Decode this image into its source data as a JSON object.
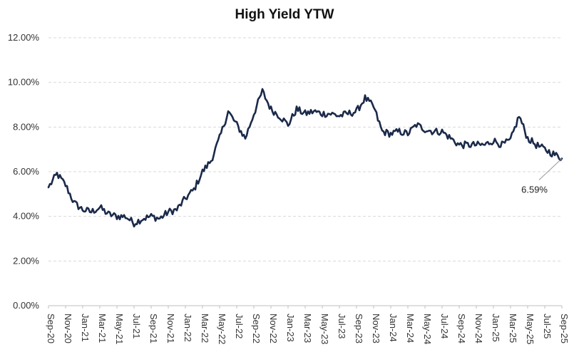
{
  "chart_data": {
    "type": "line",
    "title": "High Yield YTW",
    "xlabel": "",
    "ylabel": "",
    "ylim": [
      0,
      12
    ],
    "y_ticks": [
      "0.00%",
      "2.00%",
      "4.00%",
      "6.00%",
      "8.00%",
      "10.00%",
      "12.00%"
    ],
    "y_tick_values": [
      0,
      2,
      4,
      6,
      8,
      10,
      12
    ],
    "x_ticks": [
      "Sep-20",
      "Nov-20",
      "Jan-21",
      "Mar-21",
      "May-21",
      "Jul-21",
      "Sep-21",
      "Nov-21",
      "Jan-22",
      "Mar-22",
      "May-22",
      "Jul-22",
      "Sep-22",
      "Nov-22",
      "Jan-23",
      "Mar-23",
      "May-23",
      "Jul-23",
      "Sep-23",
      "Nov-23",
      "Jan-24",
      "Mar-24",
      "May-24",
      "Jul-24",
      "Sep-24",
      "Nov-24",
      "Jan-25",
      "Mar-25",
      "May-25",
      "Jul-25",
      "Sep-25"
    ],
    "grid": true,
    "line_color": "#1b2a4a",
    "grid_color": "#d9d9d9",
    "annotation": {
      "label": "6.59%",
      "value": 6.59,
      "x": "Sep-25"
    },
    "series": [
      {
        "x": [
          "Sep-20",
          "Oct-20",
          "Nov-20",
          "Dec-20",
          "Jan-21",
          "Feb-21",
          "Mar-21",
          "Apr-21",
          "May-21",
          "Jun-21",
          "Jul-21",
          "Aug-21",
          "Sep-21",
          "Oct-21",
          "Nov-21",
          "Dec-21",
          "Jan-22",
          "Feb-22",
          "Mar-22",
          "Apr-22",
          "May-22",
          "Jun-22",
          "Jul-22",
          "Aug-22",
          "Sep-22",
          "Oct-22",
          "Nov-22",
          "Dec-22",
          "Jan-23",
          "Feb-23",
          "Mar-23",
          "Apr-23",
          "May-23",
          "Jun-23",
          "Jul-23",
          "Aug-23",
          "Sep-23",
          "Oct-23",
          "Nov-23",
          "Dec-23",
          "Jan-24",
          "Feb-24",
          "Mar-24",
          "Apr-24",
          "May-24",
          "Jun-24",
          "Jul-24",
          "Aug-24",
          "Sep-24",
          "Oct-24",
          "Nov-24",
          "Dec-24",
          "Jan-25",
          "Feb-25",
          "Mar-25",
          "Apr-25",
          "May-25",
          "Jun-25",
          "Jul-25",
          "Aug-25",
          "Sep-25"
        ],
        "values": [
          5.3,
          5.9,
          5.4,
          4.6,
          4.3,
          4.2,
          4.4,
          4.1,
          4.0,
          4.0,
          3.7,
          3.9,
          4.0,
          3.9,
          4.2,
          4.3,
          4.8,
          5.2,
          6.0,
          6.5,
          7.5,
          8.7,
          8.1,
          7.5,
          8.6,
          9.6,
          8.8,
          8.5,
          8.1,
          8.8,
          8.6,
          8.7,
          8.6,
          8.6,
          8.5,
          8.6,
          8.7,
          9.3,
          8.9,
          7.8,
          7.7,
          7.8,
          7.7,
          8.1,
          7.9,
          7.8,
          7.8,
          7.5,
          7.2,
          7.2,
          7.2,
          7.2,
          7.4,
          7.2,
          7.4,
          8.5,
          7.5,
          7.2,
          7.0,
          6.8,
          6.59
        ]
      }
    ]
  }
}
